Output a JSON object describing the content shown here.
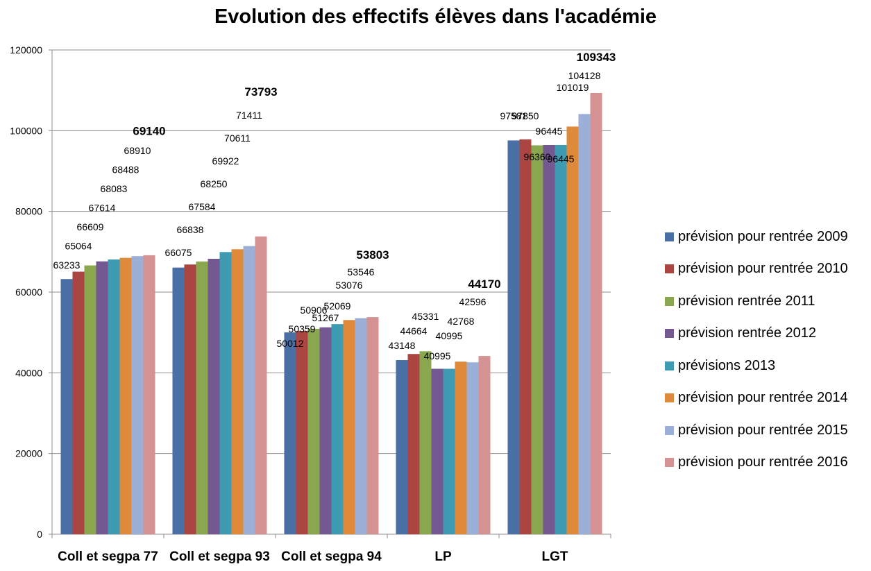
{
  "chart_data": {
    "type": "bar",
    "title": "Evolution des effectifs élèves dans l'académie",
    "xlabel": "",
    "ylabel": "",
    "ylim": [
      0,
      120000
    ],
    "yticks": [
      0,
      20000,
      40000,
      60000,
      80000,
      100000,
      120000
    ],
    "grid": true,
    "legend_position": "right",
    "categories": [
      "Coll et segpa 77",
      "Coll et segpa 93",
      "Coll et segpa 94",
      "LP",
      "LGT"
    ],
    "series": [
      {
        "name": "prévision pour rentrée 2009",
        "color": "#4a6fa5",
        "values": [
          63233,
          66075,
          50012,
          43148,
          97581
        ]
      },
      {
        "name": "prévision pour rentrée 2010",
        "color": "#ab4542",
        "values": [
          65064,
          66838,
          50359,
          44664,
          97850
        ]
      },
      {
        "name": "prévision rentrée 2011",
        "color": "#8aa64e",
        "values": [
          66609,
          67584,
          50906,
          45331,
          96360
        ]
      },
      {
        "name": "prévision rentrée 2012",
        "color": "#735892",
        "values": [
          67614,
          68250,
          51267,
          40995,
          96445
        ]
      },
      {
        "name": "prévisions 2013",
        "color": "#3e9bb2",
        "values": [
          68083,
          69922,
          52069,
          40995,
          96445
        ]
      },
      {
        "name": "prévision pour rentrée 2014",
        "color": "#df8a3b",
        "values": [
          68488,
          70611,
          53076,
          42768,
          101019
        ]
      },
      {
        "name": "prévision pour rentrée 2015",
        "color": "#9cb0d7",
        "values": [
          68910,
          71411,
          53546,
          42596,
          104128
        ]
      },
      {
        "name": "prévision pour rentrée 2016",
        "color": "#d49392",
        "values": [
          69140,
          73793,
          53803,
          44170,
          109343
        ]
      }
    ]
  }
}
